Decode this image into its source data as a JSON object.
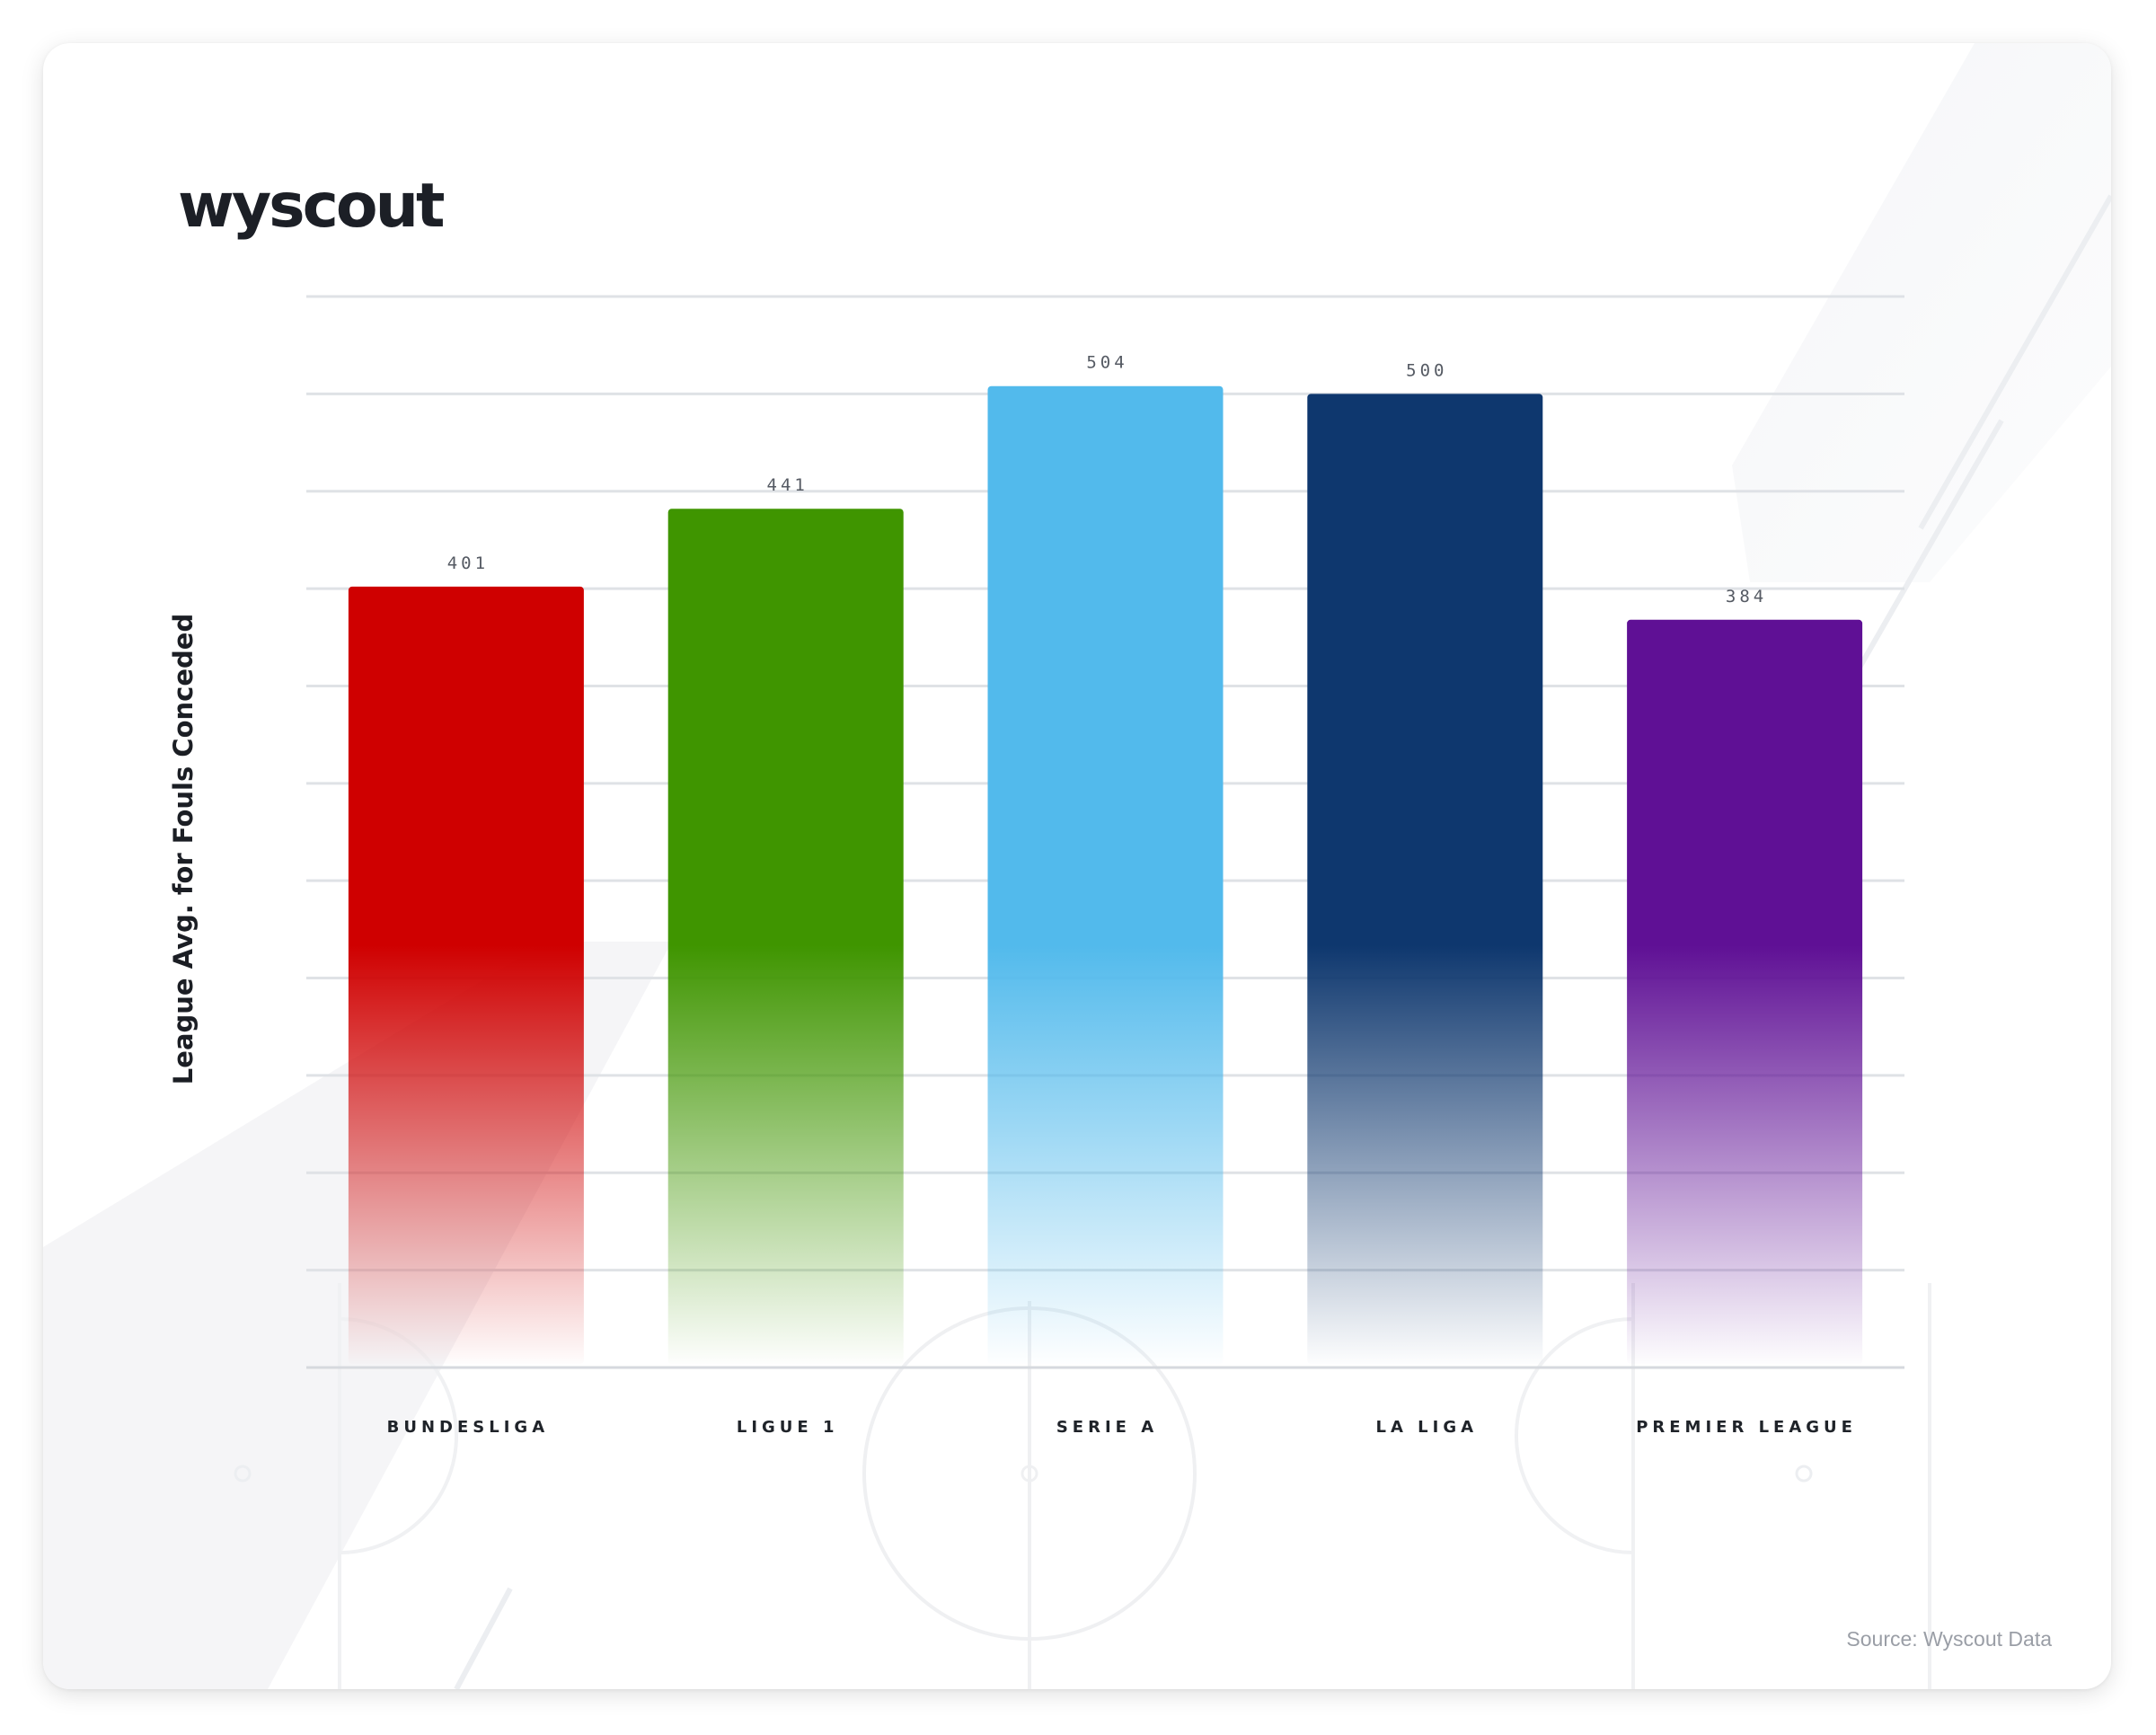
{
  "brand": {
    "logo_text": "wyscout"
  },
  "source_text": "Source: Wyscout Data",
  "chart_data": {
    "type": "bar",
    "title": "",
    "xlabel": "",
    "ylabel": "League Avg. for Fouls Conceded",
    "categories": [
      "BUNDESLIGA",
      "LIGUE 1",
      "SERIE A",
      "LA LIGA",
      "PREMIER LEAGUE"
    ],
    "values": [
      401,
      441,
      504,
      500,
      384
    ],
    "colors": [
      "#cf0000",
      "#3f9500",
      "#52baec",
      "#0e376e",
      "#5f1095"
    ],
    "ylim": [
      0,
      550
    ],
    "gridlines": 11,
    "grid": true,
    "legend": "none"
  }
}
